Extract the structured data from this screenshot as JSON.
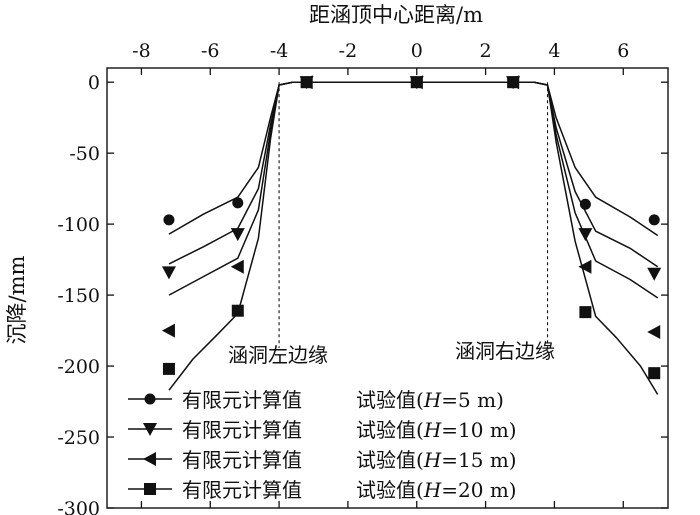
{
  "chart_data": {
    "type": "line",
    "xlabel": "距涵顶中心距离/m",
    "ylabel": "沉降/mm",
    "xlim": [
      -9,
      7.3
    ],
    "ylim": [
      -300,
      10
    ],
    "xticks": [
      -8,
      -6,
      -4,
      -2,
      0,
      2,
      4,
      6
    ],
    "yticks": [
      0,
      -50,
      -100,
      -150,
      -200,
      -250,
      -300
    ],
    "x_axis_position": "top",
    "grid": false,
    "legend": {
      "placement": "bottom-left",
      "entries": [
        {
          "line": "有限元计算值",
          "marker_label": "试验值(",
          "var": "H",
          "rest": "=5 m)",
          "marker": "circle"
        },
        {
          "line": "有限元计算值",
          "marker_label": "试验值(",
          "var": "H",
          "rest": "=10 m)",
          "marker": "triangle-down"
        },
        {
          "line": "有限元计算值",
          "marker_label": "试验值(",
          "var": "H",
          "rest": "=15 m)",
          "marker": "triangle-left"
        },
        {
          "line": "有限元计算值",
          "marker_label": "试验值(",
          "var": "H",
          "rest": "=20 m)",
          "marker": "square"
        }
      ]
    },
    "annotations": [
      {
        "text": "涵洞左边缘",
        "x": -4,
        "kind": "vline"
      },
      {
        "text": "涵洞右边缘",
        "x": 3.8,
        "kind": "vline"
      }
    ],
    "series": [
      {
        "marker": "circle",
        "line_x": [
          -7.2,
          -6.2,
          -5.2,
          -4.6,
          -4.25,
          -4.0,
          -3.6,
          -2,
          0,
          2,
          3.4,
          3.8,
          4.05,
          4.6,
          5.2,
          6.2,
          7.0
        ],
        "line_y": [
          -107,
          -93,
          -81,
          -60,
          -25,
          -2,
          0,
          0,
          0,
          0,
          0,
          -2,
          -25,
          -60,
          -81,
          -95,
          -108
        ],
        "test_x": [
          -7.2,
          -5.2,
          -3.2,
          0,
          2.8,
          4.9,
          6.9
        ],
        "test_y": [
          -97,
          -85,
          0,
          0,
          0,
          -86,
          -97
        ]
      },
      {
        "marker": "triangle-down",
        "line_x": [
          -7.2,
          -6.2,
          -5.2,
          -4.6,
          -4.25,
          -4.0,
          -3.6,
          -2,
          0,
          2,
          3.4,
          3.8,
          4.05,
          4.6,
          5.2,
          6.2,
          7.0
        ],
        "line_y": [
          -128,
          -116,
          -103,
          -75,
          -30,
          -2,
          0,
          0,
          0,
          0,
          0,
          -2,
          -32,
          -77,
          -105,
          -117,
          -130
        ],
        "test_x": [
          -7.2,
          -5.2,
          -3.2,
          0,
          2.8,
          4.9,
          6.9
        ],
        "test_y": [
          -134,
          -107,
          0,
          0,
          0,
          -107,
          -135
        ]
      },
      {
        "marker": "triangle-left",
        "line_x": [
          -7.2,
          -6.2,
          -5.2,
          -4.6,
          -4.25,
          -4.0,
          -3.6,
          -2,
          0,
          2,
          3.4,
          3.8,
          4.05,
          4.6,
          5.2,
          6.2,
          7.0
        ],
        "line_y": [
          -150,
          -137,
          -124,
          -90,
          -35,
          -2,
          0,
          0,
          0,
          0,
          0,
          -2,
          -37,
          -92,
          -126,
          -139,
          -152
        ],
        "test_x": [
          -7.2,
          -5.2,
          -3.2,
          0,
          2.8,
          4.9,
          6.9
        ],
        "test_y": [
          -175,
          -130,
          0,
          0,
          0,
          -130,
          -176
        ]
      },
      {
        "marker": "square",
        "line_x": [
          -7.2,
          -6.5,
          -5.8,
          -5.2,
          -4.6,
          -4.25,
          -4.0,
          -3.6,
          -2,
          0,
          2,
          3.4,
          3.8,
          4.05,
          4.6,
          5.2,
          5.8,
          6.5,
          7.0
        ],
        "line_y": [
          -217,
          -195,
          -178,
          -163,
          -110,
          -40,
          -2,
          0,
          0,
          0,
          0,
          0,
          -2,
          -42,
          -112,
          -165,
          -180,
          -200,
          -220
        ],
        "test_x": [
          -7.2,
          -5.2,
          -3.2,
          0,
          2.8,
          4.9,
          6.9
        ],
        "test_y": [
          -202,
          -161,
          0,
          0,
          0,
          -162,
          -205
        ]
      }
    ]
  }
}
